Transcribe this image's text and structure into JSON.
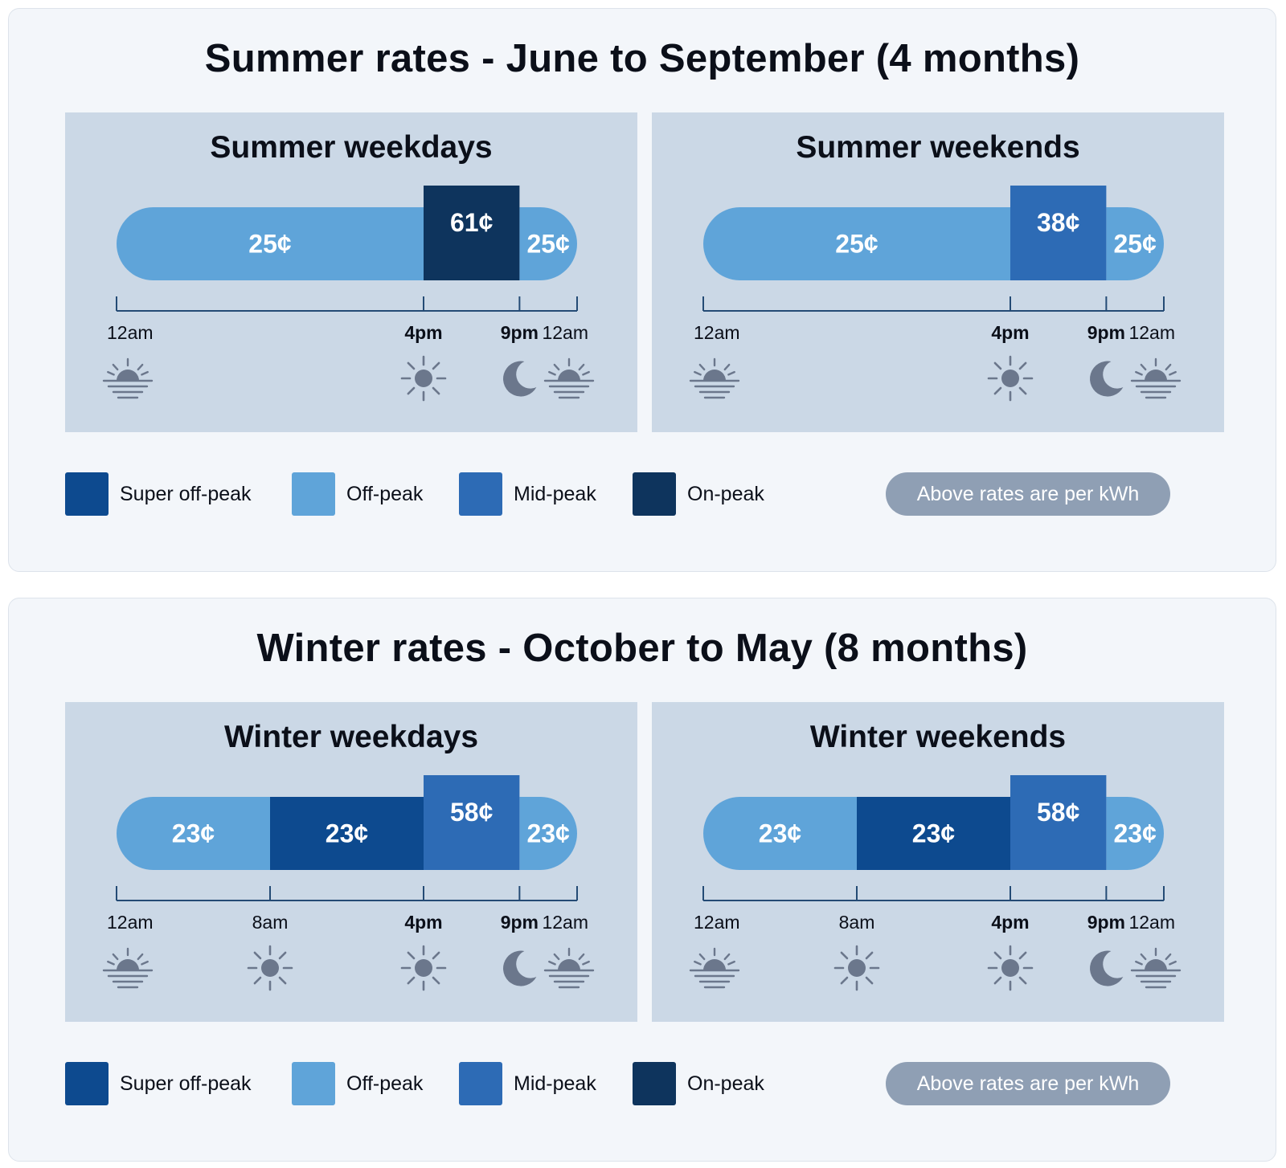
{
  "colors": {
    "super_off_peak": "#0d4a8f",
    "off_peak": "#5fa4d9",
    "mid_peak": "#2d6bb5",
    "on_peak": "#0e345d",
    "icon": "#6b778c",
    "axis": "#244b75"
  },
  "legend": {
    "items": [
      {
        "key": "super_off_peak",
        "label": "Super off-peak"
      },
      {
        "key": "off_peak",
        "label": "Off-peak"
      },
      {
        "key": "mid_peak",
        "label": "Mid-peak"
      },
      {
        "key": "on_peak",
        "label": "On-peak"
      }
    ],
    "note": "Above rates are per kWh"
  },
  "seasons": [
    {
      "id": "summer",
      "title": "Summer rates - June to September (4 months)",
      "panels": [
        {
          "title": "Summer weekdays",
          "segments": [
            {
              "start": 0,
              "end": 16,
              "tier": "off_peak",
              "rate": "25¢"
            },
            {
              "start": 16,
              "end": 21,
              "tier": "on_peak",
              "rate": "61¢"
            },
            {
              "start": 21,
              "end": 24,
              "tier": "off_peak",
              "rate": "25¢"
            }
          ],
          "ticks": [
            {
              "hour": 0,
              "label": "12am",
              "bold": false,
              "icon": "sunrise-icon"
            },
            {
              "hour": 16,
              "label": "4pm",
              "bold": true,
              "icon": "sun-icon"
            },
            {
              "hour": 21,
              "label": "9pm",
              "bold": true,
              "icon": "moon-icon"
            },
            {
              "hour": 24,
              "label": "12am",
              "bold": false,
              "icon": "sunrise-icon"
            }
          ]
        },
        {
          "title": "Summer weekends",
          "segments": [
            {
              "start": 0,
              "end": 16,
              "tier": "off_peak",
              "rate": "25¢"
            },
            {
              "start": 16,
              "end": 21,
              "tier": "mid_peak",
              "rate": "38¢"
            },
            {
              "start": 21,
              "end": 24,
              "tier": "off_peak",
              "rate": "25¢"
            }
          ],
          "ticks": [
            {
              "hour": 0,
              "label": "12am",
              "bold": false,
              "icon": "sunrise-icon"
            },
            {
              "hour": 16,
              "label": "4pm",
              "bold": true,
              "icon": "sun-icon"
            },
            {
              "hour": 21,
              "label": "9pm",
              "bold": true,
              "icon": "moon-icon"
            },
            {
              "hour": 24,
              "label": "12am",
              "bold": false,
              "icon": "sunrise-icon"
            }
          ]
        }
      ]
    },
    {
      "id": "winter",
      "title": "Winter rates - October to May (8 months)",
      "panels": [
        {
          "title": "Winter weekdays",
          "segments": [
            {
              "start": 0,
              "end": 8,
              "tier": "off_peak",
              "rate": "23¢"
            },
            {
              "start": 8,
              "end": 16,
              "tier": "super_off_peak",
              "rate": "23¢"
            },
            {
              "start": 16,
              "end": 21,
              "tier": "mid_peak",
              "rate": "58¢"
            },
            {
              "start": 21,
              "end": 24,
              "tier": "off_peak",
              "rate": "23¢"
            }
          ],
          "ticks": [
            {
              "hour": 0,
              "label": "12am",
              "bold": false,
              "icon": "sunrise-icon"
            },
            {
              "hour": 8,
              "label": "8am",
              "bold": false,
              "icon": "sun-icon"
            },
            {
              "hour": 16,
              "label": "4pm",
              "bold": true,
              "icon": "sun-icon"
            },
            {
              "hour": 21,
              "label": "9pm",
              "bold": true,
              "icon": "moon-icon"
            },
            {
              "hour": 24,
              "label": "12am",
              "bold": false,
              "icon": "sunrise-icon"
            }
          ]
        },
        {
          "title": "Winter weekends",
          "segments": [
            {
              "start": 0,
              "end": 8,
              "tier": "off_peak",
              "rate": "23¢"
            },
            {
              "start": 8,
              "end": 16,
              "tier": "super_off_peak",
              "rate": "23¢"
            },
            {
              "start": 16,
              "end": 21,
              "tier": "mid_peak",
              "rate": "58¢"
            },
            {
              "start": 21,
              "end": 24,
              "tier": "off_peak",
              "rate": "23¢"
            }
          ],
          "ticks": [
            {
              "hour": 0,
              "label": "12am",
              "bold": false,
              "icon": "sunrise-icon"
            },
            {
              "hour": 8,
              "label": "8am",
              "bold": false,
              "icon": "sun-icon"
            },
            {
              "hour": 16,
              "label": "4pm",
              "bold": true,
              "icon": "sun-icon"
            },
            {
              "hour": 21,
              "label": "9pm",
              "bold": true,
              "icon": "moon-icon"
            },
            {
              "hour": 24,
              "label": "12am",
              "bold": false,
              "icon": "sunrise-icon"
            }
          ]
        }
      ]
    }
  ]
}
